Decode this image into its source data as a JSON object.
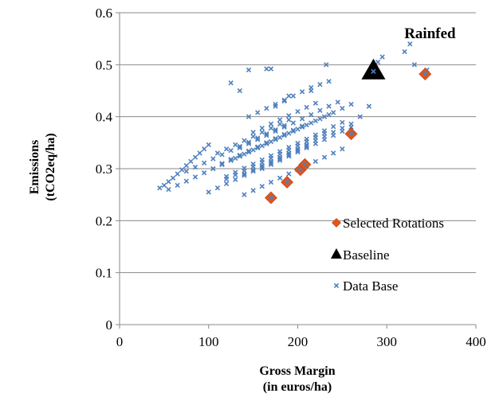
{
  "chart_data": {
    "type": "scatter",
    "xlabel": [
      "Gross Margin",
      "(in euros/ha)"
    ],
    "ylabel": [
      "Emissions",
      "(tCO2eq/ha)"
    ],
    "xlim": [
      0,
      400
    ],
    "ylim": [
      0,
      0.6
    ],
    "xticks": [
      0,
      100,
      200,
      300,
      400
    ],
    "yticks": [
      0,
      0.1,
      0.2,
      0.3,
      0.4,
      0.5,
      0.6
    ],
    "xtick_labels": [
      "0",
      "100",
      "200",
      "300",
      "400"
    ],
    "ytick_labels": [
      "0",
      "0.1",
      "0.2",
      "0.3",
      "0.4",
      "0.5",
      "0.6"
    ],
    "grid": "horizontal",
    "legend": "bottom-right",
    "annotations": [
      {
        "text": "Rainfed",
        "x": 325,
        "y": 0.56
      }
    ],
    "series": [
      {
        "name": "Selected Rotations",
        "marker": "diamond",
        "color": "#e2541b",
        "x": [
          170,
          188,
          203,
          208,
          260,
          343
        ],
        "y": [
          0.244,
          0.274,
          0.298,
          0.308,
          0.367,
          0.482
        ]
      },
      {
        "name": "Baseline",
        "marker": "triangle",
        "color": "#000000",
        "x": [
          285
        ],
        "y": [
          0.487
        ]
      },
      {
        "name": "Data Base",
        "marker": "x",
        "color": "#4f81bd",
        "x": [
          45,
          50,
          55,
          60,
          65,
          70,
          75,
          80,
          85,
          90,
          95,
          100,
          55,
          65,
          75,
          85,
          95,
          105,
          115,
          125,
          135,
          145,
          155,
          165,
          75,
          85,
          95,
          105,
          115,
          125,
          135,
          145,
          155,
          165,
          175,
          185,
          100,
          110,
          120,
          130,
          140,
          150,
          160,
          170,
          180,
          190,
          200,
          210,
          105,
          115,
          125,
          135,
          145,
          155,
          165,
          175,
          185,
          195,
          205,
          215,
          225,
          235,
          120,
          130,
          140,
          150,
          160,
          170,
          180,
          190,
          200,
          210,
          220,
          230,
          240,
          250,
          130,
          140,
          150,
          160,
          170,
          180,
          190,
          200,
          210,
          220,
          230,
          240,
          250,
          260,
          140,
          150,
          160,
          170,
          180,
          190,
          200,
          210,
          220,
          230,
          240,
          250,
          260,
          135,
          145,
          155,
          165,
          175,
          185,
          195,
          205,
          215,
          225,
          235,
          245,
          160,
          170,
          180,
          190,
          200,
          210,
          220,
          230,
          240,
          250,
          110,
          120,
          130,
          140,
          150,
          160,
          170,
          180,
          190,
          115,
          125,
          135,
          145,
          155,
          165,
          175,
          185,
          195,
          205,
          150,
          160,
          170,
          180,
          190,
          200,
          210,
          220,
          140,
          150,
          160,
          170,
          180,
          190,
          200,
          210,
          220,
          230,
          240,
          250,
          145,
          155,
          165,
          175,
          185,
          195,
          205,
          215,
          225,
          235,
          120,
          130,
          140,
          150,
          160,
          170,
          180,
          190,
          200,
          210,
          220,
          230,
          125,
          135,
          145,
          165,
          170,
          175,
          185,
          190,
          215,
          232,
          260,
          270,
          280,
          290,
          295,
          320,
          326,
          331,
          345
        ],
        "y": [
          0.263,
          0.268,
          0.275,
          0.282,
          0.29,
          0.298,
          0.306,
          0.314,
          0.322,
          0.33,
          0.338,
          0.346,
          0.26,
          0.268,
          0.276,
          0.284,
          0.292,
          0.3,
          0.308,
          0.316,
          0.324,
          0.332,
          0.34,
          0.348,
          0.295,
          0.303,
          0.311,
          0.319,
          0.327,
          0.335,
          0.343,
          0.351,
          0.359,
          0.367,
          0.375,
          0.383,
          0.255,
          0.263,
          0.271,
          0.279,
          0.287,
          0.295,
          0.303,
          0.311,
          0.319,
          0.327,
          0.335,
          0.343,
          0.3,
          0.308,
          0.316,
          0.324,
          0.332,
          0.34,
          0.348,
          0.356,
          0.364,
          0.372,
          0.38,
          0.388,
          0.396,
          0.404,
          0.285,
          0.293,
          0.301,
          0.309,
          0.317,
          0.325,
          0.333,
          0.341,
          0.349,
          0.357,
          0.365,
          0.373,
          0.381,
          0.389,
          0.32,
          0.328,
          0.336,
          0.344,
          0.352,
          0.36,
          0.368,
          0.376,
          0.384,
          0.392,
          0.4,
          0.408,
          0.416,
          0.424,
          0.29,
          0.298,
          0.306,
          0.314,
          0.322,
          0.33,
          0.338,
          0.346,
          0.354,
          0.362,
          0.37,
          0.378,
          0.386,
          0.34,
          0.348,
          0.356,
          0.364,
          0.372,
          0.38,
          0.388,
          0.396,
          0.404,
          0.412,
          0.42,
          0.428,
          0.3,
          0.308,
          0.316,
          0.324,
          0.332,
          0.34,
          0.348,
          0.356,
          0.364,
          0.372,
          0.33,
          0.338,
          0.346,
          0.354,
          0.362,
          0.37,
          0.378,
          0.386,
          0.394,
          0.31,
          0.318,
          0.326,
          0.334,
          0.342,
          0.35,
          0.358,
          0.366,
          0.374,
          0.382,
          0.37,
          0.378,
          0.386,
          0.394,
          0.402,
          0.41,
          0.418,
          0.426,
          0.25,
          0.258,
          0.266,
          0.274,
          0.282,
          0.29,
          0.298,
          0.306,
          0.314,
          0.322,
          0.33,
          0.338,
          0.4,
          0.408,
          0.416,
          0.424,
          0.432,
          0.44,
          0.448,
          0.456,
          0.462,
          0.468,
          0.28,
          0.288,
          0.296,
          0.304,
          0.312,
          0.32,
          0.328,
          0.336,
          0.344,
          0.352,
          0.36,
          0.368,
          0.465,
          0.45,
          0.49,
          0.492,
          0.492,
          0.42,
          0.43,
          0.44,
          0.45,
          0.5,
          0.38,
          0.4,
          0.42,
          0.505,
          0.515,
          0.525,
          0.54,
          0.5,
          0.49
        ]
      }
    ]
  }
}
